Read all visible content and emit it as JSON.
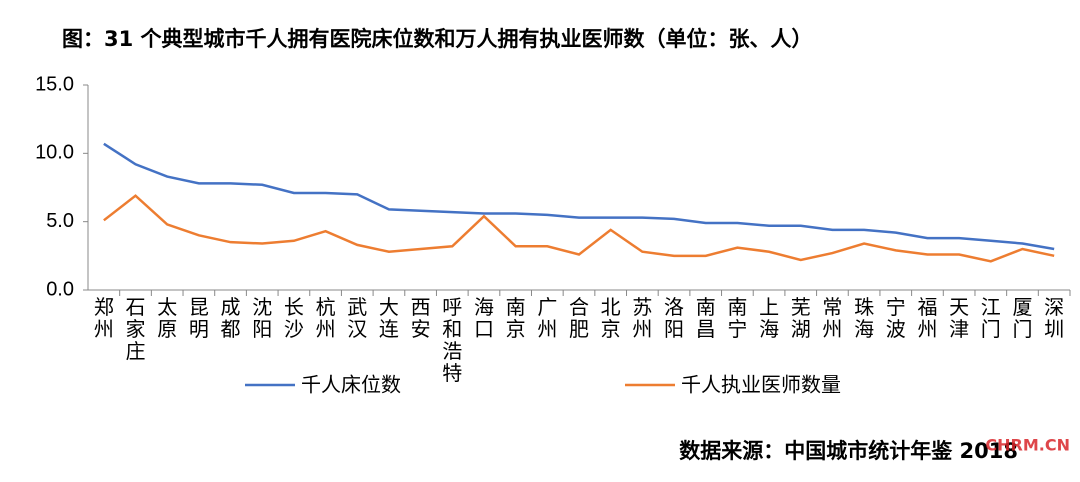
{
  "chart_data": {
    "type": "line",
    "title": "图：31 个典型城市千人拥有医院床位数和万人拥有执业医师数（单位：张、人）",
    "source": "数据来源：中国城市统计年鉴 2018",
    "watermark": "CHRM.CN",
    "categories": [
      "郑州",
      "石家庄",
      "太原",
      "昆明",
      "成都",
      "沈阳",
      "长沙",
      "杭州",
      "武汉",
      "大连",
      "西安",
      "呼和浩特",
      "海口",
      "南京",
      "广州",
      "合肥",
      "北京",
      "苏州",
      "洛阳",
      "南昌",
      "南宁",
      "上海",
      "芜湖",
      "常州",
      "珠海",
      "宁波",
      "福州",
      "天津",
      "江门",
      "厦门",
      "深圳"
    ],
    "series": [
      {
        "name": "千人床位数",
        "color": "#4472c4",
        "values": [
          10.7,
          9.2,
          8.3,
          7.8,
          7.8,
          7.7,
          7.1,
          7.1,
          7.0,
          5.9,
          5.8,
          5.7,
          5.6,
          5.6,
          5.5,
          5.3,
          5.3,
          5.3,
          5.2,
          4.9,
          4.9,
          4.7,
          4.7,
          4.4,
          4.4,
          4.2,
          3.8,
          3.8,
          3.6,
          3.4,
          3.0
        ]
      },
      {
        "name": "千人执业医师数量",
        "color": "#ed7d31",
        "values": [
          5.1,
          6.9,
          4.8,
          4.0,
          3.5,
          3.4,
          3.6,
          4.3,
          3.3,
          2.8,
          3.0,
          3.2,
          5.4,
          3.2,
          3.2,
          2.6,
          4.4,
          2.8,
          2.5,
          2.5,
          3.1,
          2.8,
          2.2,
          2.7,
          3.4,
          2.9,
          2.6,
          2.6,
          2.1,
          3.0,
          2.5
        ]
      }
    ],
    "ylim": [
      0,
      15
    ],
    "yticks": [
      {
        "value": 0,
        "label": "0.0"
      },
      {
        "value": 5,
        "label": "5.0"
      },
      {
        "value": 10,
        "label": "10.0"
      },
      {
        "value": 15,
        "label": "15.0"
      }
    ],
    "grid": false
  }
}
